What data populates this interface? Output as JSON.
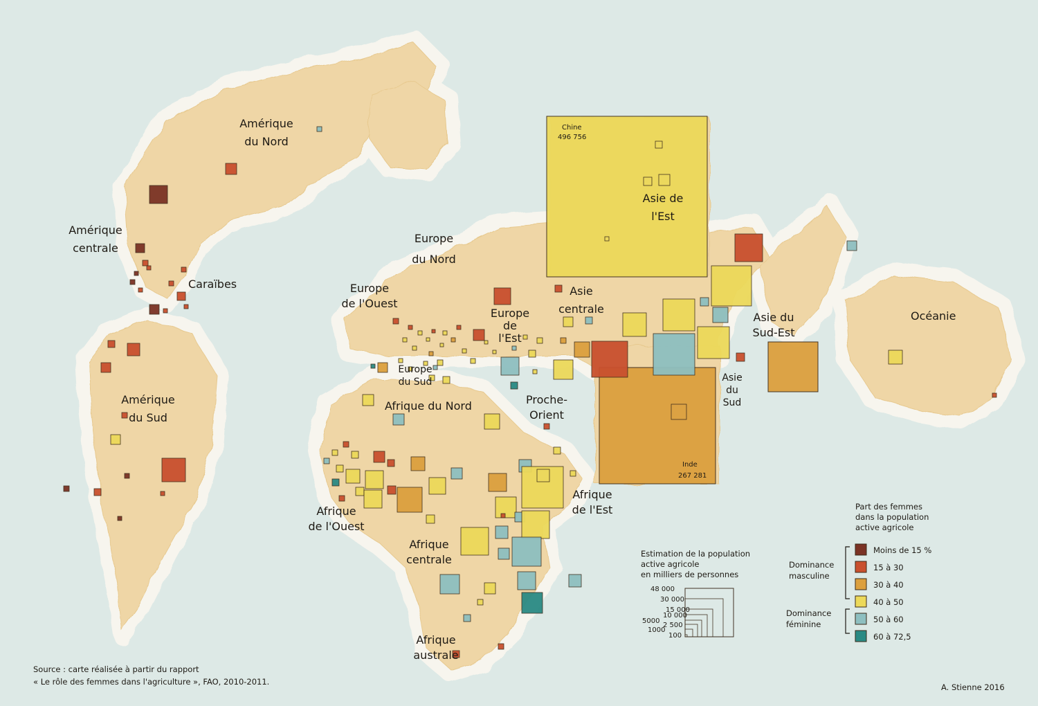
{
  "regions": {
    "amerique_du_nord": [
      "Amérique",
      "du Nord"
    ],
    "amerique_centrale": [
      "Amérique",
      "centrale"
    ],
    "caraibes": "Caraïbes",
    "amerique_du_sud": [
      "Amérique",
      "du Sud"
    ],
    "europe_du_nord": [
      "Europe",
      "du Nord"
    ],
    "europe_de_l_ouest": [
      "Europe",
      "de l'Ouest"
    ],
    "europe_de_l_est": [
      "Europe",
      "de",
      "l'Est"
    ],
    "europe_du_sud": [
      "Europe",
      "du Sud"
    ],
    "afrique_du_nord": "Afrique du Nord",
    "proche_orient": [
      "Proche-",
      "Orient"
    ],
    "asie_centrale": [
      "Asie",
      "centrale"
    ],
    "asie_de_l_est": [
      "Asie de",
      "l'Est"
    ],
    "asie_du_sud": [
      "Asie",
      "du",
      "Sud"
    ],
    "asie_du_sud_est": [
      "Asie du",
      "Sud-Est"
    ],
    "oceanie": "Océanie",
    "afrique_de_l_est": [
      "Afrique",
      "de l'Est"
    ],
    "afrique_de_l_ouest": [
      "Afrique",
      "de l'Ouest"
    ],
    "afrique_centrale": [
      "Afrique",
      "centrale"
    ],
    "afrique_australe": [
      "Afrique",
      "australe"
    ]
  },
  "callouts": {
    "chine": {
      "name": "Chine",
      "value": "496 756"
    },
    "inde": {
      "name": "Inde",
      "value": "267 281"
    }
  },
  "size_legend": {
    "title": [
      "Estimation de la population",
      "active agricole",
      "en milliers de personnes"
    ],
    "values": [
      "48 000",
      "30 000",
      "15 000",
      "10 000",
      "5000",
      "2 500",
      "1000",
      "100"
    ]
  },
  "color_legend": {
    "title": [
      "Part des femmes",
      "dans la population",
      "active agricole"
    ],
    "groups": {
      "masculine": [
        "Dominance",
        "masculine"
      ],
      "feminine": [
        "Dominance",
        "féminine"
      ]
    },
    "classes": [
      {
        "label": "Moins de 15 %",
        "color": "#7b3325"
      },
      {
        "label": "15 à 30",
        "color": "#c9502e"
      },
      {
        "label": "30 à 40",
        "color": "#dca03e"
      },
      {
        "label": "40 à 50",
        "color": "#ecd95a"
      },
      {
        "label": "50 à 60",
        "color": "#8ebfc0"
      },
      {
        "label": "60 à 72,5",
        "color": "#2a8a84"
      }
    ]
  },
  "colors": {
    "ocean": "#dde9e6",
    "land": "#efd6a6",
    "coast_halo": "#f7f5ee"
  },
  "source": [
    "Source : carte réalisée à partir du rapport",
    "« Le rôle des femmes dans l'agriculture », FAO, 2010-2011."
  ],
  "signature": "A. Stienne 2016"
}
